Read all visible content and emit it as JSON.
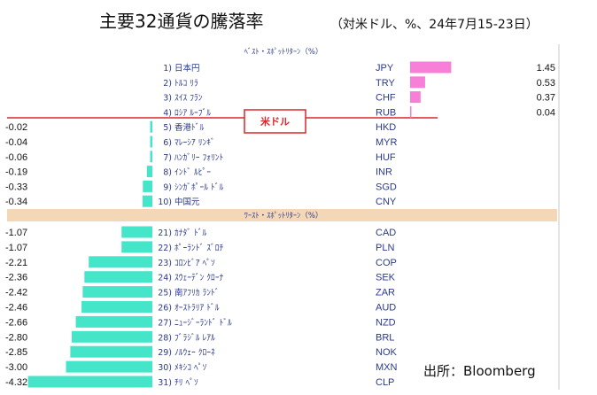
{
  "title": "主要32通貨の騰落率",
  "subtitle": "（対米ドル、%、24年7月15-23日）",
  "source": "出所：Bloomberg",
  "usd_label": "米ドル",
  "colors": {
    "best_bar": "#f77fd7",
    "worst_bar": "#45e5c9",
    "section_band": "#f4d7b6",
    "usd_line": "#d8262b",
    "label_text": "#2b3a8c"
  },
  "chart_data": {
    "type": "bar",
    "title": "主要32通貨の騰落率",
    "subtitle": "（対米ドル、%、24年7月15-23日）",
    "best_header": "ﾍﾞｽﾄ・ｽﾎﾟｯﾄﾘﾀｰﾝ（%）",
    "worst_header": "ﾜｰｽﾄ・ｽﾎﾟｯﾄﾘﾀｰﾝ（%）",
    "unit": "%",
    "best": [
      {
        "rank": "1)",
        "name": "日本円",
        "code": "JPY",
        "value": 1.45,
        "label": "1.45"
      },
      {
        "rank": "2)",
        "name": "ﾄﾙｺ ﾘﾗ",
        "code": "TRY",
        "value": 0.53,
        "label": "0.53"
      },
      {
        "rank": "3)",
        "name": "ｽｲｽ ﾌﾗﾝ",
        "code": "CHF",
        "value": 0.37,
        "label": "0.37"
      },
      {
        "rank": "4)",
        "name": "ﾛｼｱ ﾙｰﾌﾞﾙ",
        "code": "RUB",
        "value": 0.04,
        "label": "0.04"
      },
      {
        "rank": "5)",
        "name": "香港ﾄﾞﾙ",
        "code": "HKD",
        "value": -0.02,
        "label": "-0.02"
      },
      {
        "rank": "6)",
        "name": "ﾏﾚｰｼｱ ﾘﾝｷﾞ",
        "code": "MYR",
        "value": -0.04,
        "label": "-0.04"
      },
      {
        "rank": "7)",
        "name": "ﾊﾝｶﾞﾘｰ ﾌｫﾘﾝﾄ",
        "code": "HUF",
        "value": -0.06,
        "label": "-0.06"
      },
      {
        "rank": "8)",
        "name": "ｲﾝﾄﾞ ﾙﾋﾟｰ",
        "code": "INR",
        "value": -0.19,
        "label": "-0.19"
      },
      {
        "rank": "9)",
        "name": "ｼﾝｶﾞﾎﾟｰﾙ ﾄﾞﾙ",
        "code": "SGD",
        "value": -0.33,
        "label": "-0.33"
      },
      {
        "rank": "10)",
        "name": "中国元",
        "code": "CNY",
        "value": -0.34,
        "label": "-0.34"
      }
    ],
    "worst": [
      {
        "rank": "21)",
        "name": "ｶﾅﾀﾞ ﾄﾞﾙ",
        "code": "CAD",
        "value": -1.07,
        "label": "-1.07"
      },
      {
        "rank": "22)",
        "name": "ﾎﾟｰﾗﾝﾄﾞ ｽﾞﾛﾁ",
        "code": "PLN",
        "value": -1.07,
        "label": "-1.07"
      },
      {
        "rank": "23)",
        "name": "ｺﾛﾝﾋﾞｱ ﾍﾟｿ",
        "code": "COP",
        "value": -2.21,
        "label": "-2.21"
      },
      {
        "rank": "24)",
        "name": "ｽｳｪｰﾃﾞﾝ ｸﾛｰﾅ",
        "code": "SEK",
        "value": -2.36,
        "label": "-2.36"
      },
      {
        "rank": "25)",
        "name": "南ｱﾌﾘｶ ﾗﾝﾄﾞ",
        "code": "ZAR",
        "value": -2.42,
        "label": "-2.42"
      },
      {
        "rank": "26)",
        "name": "ｵｰｽﾄﾗﾘｱ ﾄﾞﾙ",
        "code": "AUD",
        "value": -2.46,
        "label": "-2.46"
      },
      {
        "rank": "27)",
        "name": "ﾆｭｰｼﾞｰﾗﾝﾄﾞ ﾄﾞﾙ",
        "code": "NZD",
        "value": -2.66,
        "label": "-2.66"
      },
      {
        "rank": "28)",
        "name": "ﾌﾞﾗｼﾞﾙ ﾚｱﾙ",
        "code": "BRL",
        "value": -2.8,
        "label": "-2.80"
      },
      {
        "rank": "29)",
        "name": "ﾉﾙｳｪｰ ｸﾛｰﾈ",
        "code": "NOK",
        "value": -2.85,
        "label": "-2.85"
      },
      {
        "rank": "30)",
        "name": "ﾒｷｼｺ ﾍﾟｿ",
        "code": "MXN",
        "value": -3.0,
        "label": "-3.00"
      },
      {
        "rank": "31)",
        "name": "ﾁﾘ ﾍﾟｿ",
        "code": "CLP",
        "value": -4.32,
        "label": "-4.32"
      }
    ]
  }
}
